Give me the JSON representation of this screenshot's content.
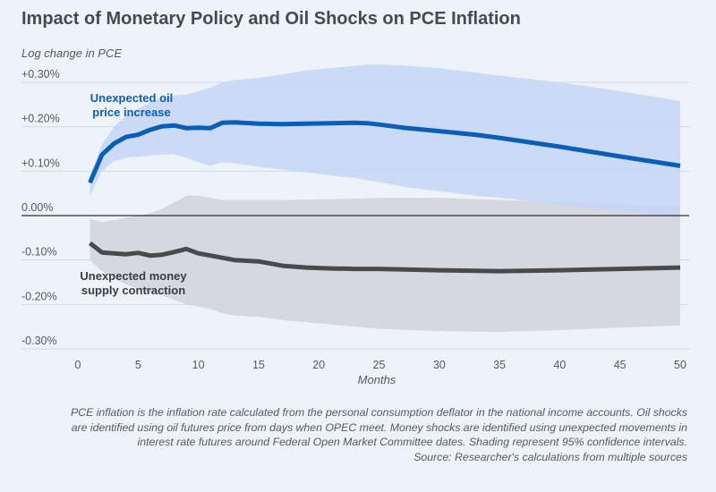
{
  "chart_data": {
    "type": "line",
    "title": "Impact of Monetary Policy and Oil Shocks on PCE Inflation",
    "ylabel": "Log change in PCE",
    "xlabel": "Months",
    "xlim": [
      0,
      50
    ],
    "ylim": [
      -0.3,
      0.3
    ],
    "x_ticks": [
      0,
      5,
      10,
      15,
      20,
      25,
      30,
      35,
      40,
      45,
      50
    ],
    "y_ticks": [
      {
        "value": 0.3,
        "label": "+0.30%"
      },
      {
        "value": 0.2,
        "label": "+0.20%"
      },
      {
        "value": 0.1,
        "label": "+0.10%"
      },
      {
        "value": 0.0,
        "label": "0.00%"
      },
      {
        "value": -0.1,
        "label": "-0.10%"
      },
      {
        "value": -0.2,
        "label": "-0.20%"
      },
      {
        "value": -0.3,
        "label": "-0.30%"
      }
    ],
    "grid": true,
    "series": [
      {
        "name": "Unexpected oil price increase",
        "color": "#0a5eb8",
        "band_color": "#c4d6f6",
        "x": [
          1,
          2,
          3,
          4,
          5,
          6,
          7,
          8,
          9,
          10,
          11,
          12,
          13,
          15,
          17,
          19,
          21,
          23,
          24,
          25,
          27,
          30,
          33,
          35,
          40,
          45,
          50
        ],
        "values": [
          0.074,
          0.137,
          0.162,
          0.177,
          0.182,
          0.193,
          0.201,
          0.203,
          0.197,
          0.198,
          0.197,
          0.209,
          0.21,
          0.207,
          0.206,
          0.207,
          0.208,
          0.209,
          0.208,
          0.205,
          0.198,
          0.19,
          0.182,
          0.175,
          0.155,
          0.133,
          0.112
        ],
        "upper": [
          0.09,
          0.16,
          0.2,
          0.225,
          0.24,
          0.255,
          0.265,
          0.27,
          0.272,
          0.28,
          0.288,
          0.3,
          0.305,
          0.31,
          0.318,
          0.327,
          0.332,
          0.337,
          0.34,
          0.34,
          0.338,
          0.332,
          0.322,
          0.315,
          0.3,
          0.28,
          0.258
        ],
        "lower": [
          0.045,
          0.1,
          0.122,
          0.13,
          0.132,
          0.135,
          0.137,
          0.138,
          0.13,
          0.12,
          0.112,
          0.12,
          0.118,
          0.11,
          0.103,
          0.097,
          0.09,
          0.085,
          0.08,
          0.075,
          0.065,
          0.055,
          0.045,
          0.04,
          0.025,
          0.01,
          -0.005
        ]
      },
      {
        "name": "Unexpected money supply contraction",
        "color": "#4a4a4d",
        "band_color": "#d1d5dc",
        "x": [
          1,
          2,
          3,
          4,
          5,
          6,
          7,
          8,
          9,
          10,
          11,
          12,
          13,
          15,
          17,
          19,
          21,
          23,
          25,
          30,
          35,
          40,
          45,
          50
        ],
        "values": [
          -0.062,
          -0.083,
          -0.085,
          -0.087,
          -0.084,
          -0.09,
          -0.088,
          -0.082,
          -0.075,
          -0.085,
          -0.09,
          -0.095,
          -0.1,
          -0.103,
          -0.113,
          -0.117,
          -0.119,
          -0.12,
          -0.12,
          -0.123,
          -0.125,
          -0.123,
          -0.12,
          -0.117
        ],
        "upper": [
          -0.008,
          -0.015,
          -0.01,
          -0.005,
          0.0,
          0.005,
          0.015,
          0.03,
          0.045,
          0.045,
          0.04,
          0.035,
          0.035,
          0.035,
          0.035,
          0.036,
          0.037,
          0.038,
          0.04,
          0.04,
          0.035,
          0.03,
          0.025,
          0.02
        ],
        "lower": [
          -0.1,
          -0.125,
          -0.14,
          -0.155,
          -0.165,
          -0.175,
          -0.18,
          -0.19,
          -0.2,
          -0.205,
          -0.21,
          -0.22,
          -0.225,
          -0.228,
          -0.235,
          -0.24,
          -0.245,
          -0.25,
          -0.255,
          -0.26,
          -0.262,
          -0.258,
          -0.252,
          -0.247
        ]
      }
    ],
    "annotations": [
      {
        "series": 0,
        "lines": [
          "Unexpected oil",
          "price increase"
        ],
        "color": "#0a5eb8"
      },
      {
        "series": 1,
        "lines": [
          "Unexpected money",
          "supply contraction"
        ],
        "color": "#3c3c3f"
      }
    ]
  },
  "caption": [
    "PCE inflation is the inflation rate calculated from the personal consumption deflator in the national income accounts. Oil shocks",
    "are identified using oil futures price from days when OPEC meet. Money shocks are identified using unexpected movements in",
    "interest rate futures around Federal Open Market Committee dates. Shading represent 95% confidence intervals.",
    "Source: Researcher's calculations from multiple sources"
  ]
}
